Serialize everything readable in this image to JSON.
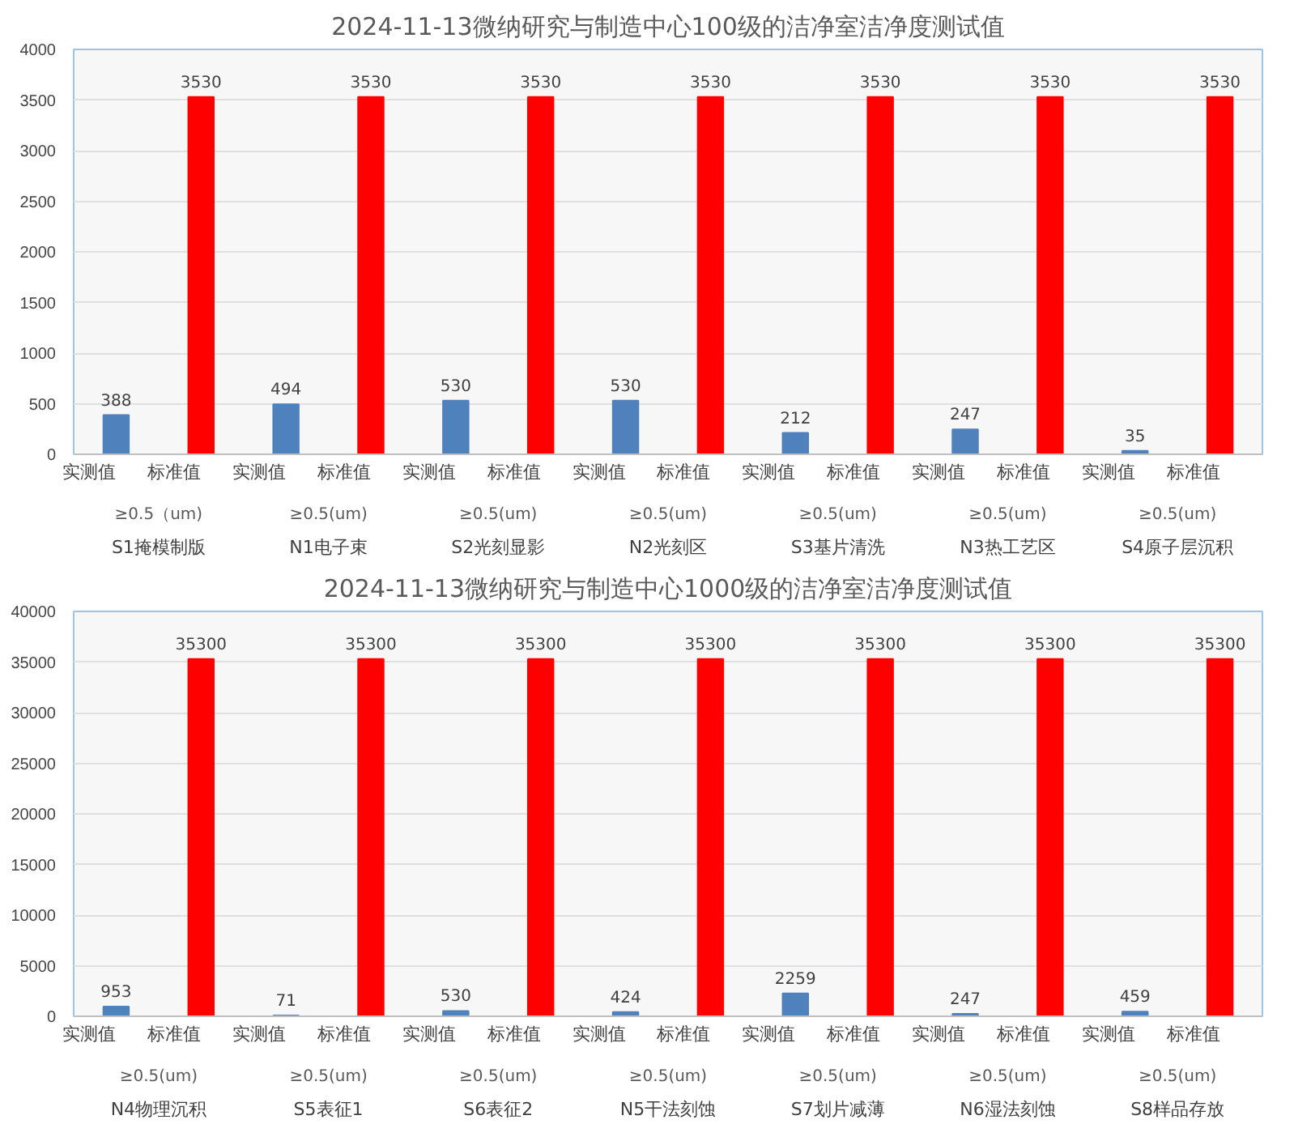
{
  "chart_data": [
    {
      "type": "bar",
      "title": "2024-11-13微纳研究与制造中心100级的洁净室洁净度测试值",
      "categories": [
        "实测值",
        "标准值",
        "实测值",
        "标准值",
        "实测值",
        "标准值",
        "实测值",
        "标准值",
        "实测值",
        "标准值",
        "实测值",
        "标准值",
        "实测值",
        "标准值"
      ],
      "values": [
        388,
        3530,
        494,
        3530,
        530,
        3530,
        530,
        3530,
        212,
        3530,
        247,
        3530,
        35,
        3530
      ],
      "colors": [
        "#4f81bd",
        "#ff0000",
        "#4f81bd",
        "#ff0000",
        "#4f81bd",
        "#ff0000",
        "#4f81bd",
        "#ff0000",
        "#4f81bd",
        "#ff0000",
        "#4f81bd",
        "#ff0000",
        "#4f81bd",
        "#ff0000"
      ],
      "data_labels": true,
      "ylim": [
        0,
        4000
      ],
      "yticks": [
        0,
        500,
        1000,
        1500,
        2000,
        2500,
        3000,
        3500,
        4000
      ],
      "grid": "y",
      "annotations": [
        "≥0.5（um)",
        "S1掩模制版",
        "≥0.5(um)",
        "N1电子束",
        "≥0.5(um)",
        "S2光刻显影",
        "≥0.5(um)",
        "N2光刻区",
        "≥0.5(um)",
        "S3基片清洗",
        "≥0.5(um)",
        "N3热工艺区",
        "≥0.5(um)",
        "S4原子层沉积"
      ]
    },
    {
      "type": "bar",
      "title": "2024-11-13微纳研究与制造中心1000级的洁净室洁净度测试值",
      "categories": [
        "实测值",
        "标准值",
        "实测值",
        "标准值",
        "实测值",
        "标准值",
        "实测值",
        "标准值",
        "实测值",
        "标准值",
        "实测值",
        "标准值",
        "实测值",
        "标准值"
      ],
      "values": [
        953,
        35300,
        71,
        35300,
        530,
        35300,
        424,
        35300,
        2259,
        35300,
        247,
        35300,
        459,
        35300
      ],
      "colors": [
        "#4f81bd",
        "#ff0000",
        "#4f81bd",
        "#ff0000",
        "#4f81bd",
        "#ff0000",
        "#4f81bd",
        "#ff0000",
        "#4f81bd",
        "#ff0000",
        "#4f81bd",
        "#ff0000",
        "#4f81bd",
        "#ff0000"
      ],
      "data_labels": true,
      "ylim": [
        0,
        40000
      ],
      "yticks": [
        0,
        5000,
        10000,
        15000,
        20000,
        25000,
        30000,
        35000,
        40000
      ],
      "grid": "y",
      "annotations": [
        "≥0.5(um)",
        "N4物理沉积",
        "≥0.5(um)",
        "S5表征1",
        "≥0.5(um)",
        "S6表征2",
        "≥0.5(um)",
        "N5干法刻蚀",
        "≥0.5(um)",
        "S7划片减薄",
        "≥0.5(um)",
        "N6湿法刻蚀",
        "≥0.5(um)",
        "S8样品存放"
      ]
    }
  ]
}
